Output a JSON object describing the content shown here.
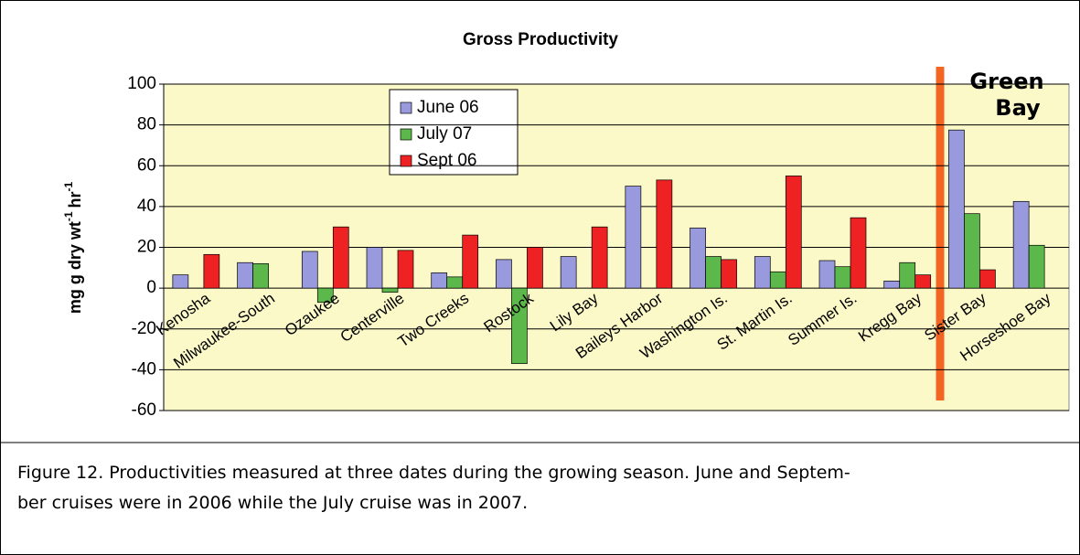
{
  "chart_data": {
    "type": "bar",
    "title": "Gross Productivity",
    "ylabel": {
      "text": "mg g dry wt",
      "sup1": "-1",
      "text2": "hr",
      "sup2": "-1"
    },
    "categories": [
      "Kenosha",
      "Milwaukee-South",
      "Ozaukee",
      "Centerville",
      "Two Creeks",
      "Rostock",
      "Lily Bay",
      "Baileys Harbor",
      "Washington Is.",
      "St. Martin Is.",
      "Summer Is.",
      "Kregg Bay",
      "Sister Bay",
      "Horseshoe Bay"
    ],
    "series": [
      {
        "name": "June 06",
        "color": "#9999dd",
        "values": [
          6.5,
          12.5,
          18,
          20,
          7.5,
          14,
          15.5,
          50,
          29.5,
          15.5,
          13.5,
          3.5,
          77.5,
          42.5
        ]
      },
      {
        "name": "July 07",
        "color": "#5cb84a",
        "values": [
          null,
          12,
          -7,
          -2,
          5.5,
          -37,
          null,
          null,
          15.5,
          8,
          10.5,
          12.5,
          36.5,
          21
        ]
      },
      {
        "name": "Sept 06",
        "color": "#ee2222",
        "values": [
          16.5,
          null,
          30,
          18.5,
          26,
          20,
          30,
          53,
          14,
          55,
          34.5,
          6.5,
          9,
          null
        ]
      }
    ],
    "ylim": [
      -60,
      100
    ],
    "yticks": [
      -60,
      -40,
      -20,
      0,
      20,
      40,
      60,
      80,
      100
    ],
    "grid": true,
    "legend": "upper-left",
    "annotation": [
      "Green",
      "Bay"
    ],
    "caption": [
      "Figure 12. Productivities measured at three dates during the growing season. June and Septem-",
      "ber cruises were in 2006 while the July cruise was in 2007."
    ]
  }
}
